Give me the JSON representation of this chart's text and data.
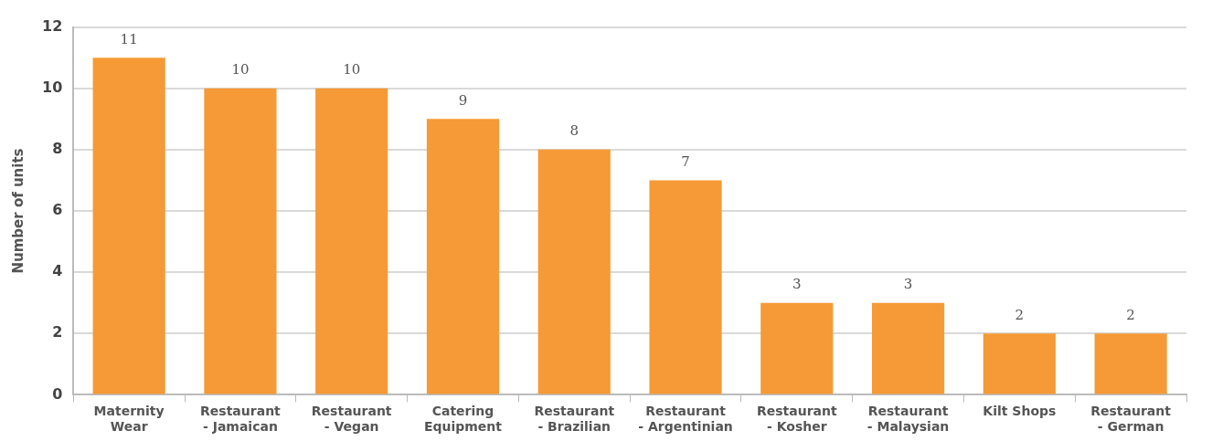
{
  "chart_data": {
    "type": "bar",
    "ylabel": "Number of units",
    "categories": [
      "Maternity Wear",
      "Restaurant - Jamaican",
      "Restaurant - Vegan",
      "Catering Equipment",
      "Restaurant - Brazilian",
      "Restaurant - Argentinian",
      "Restaurant - Kosher",
      "Restaurant - Malaysian",
      "Kilt Shops",
      "Restaurant - German"
    ],
    "values": [
      11,
      10,
      10,
      9,
      8,
      7,
      3,
      3,
      2,
      2
    ],
    "color": "#f59a36",
    "ylim": [
      0,
      12
    ],
    "yticks": [
      0,
      2,
      4,
      6,
      8,
      10,
      12
    ],
    "grid": "y",
    "data_labels": true,
    "legend": false
  }
}
